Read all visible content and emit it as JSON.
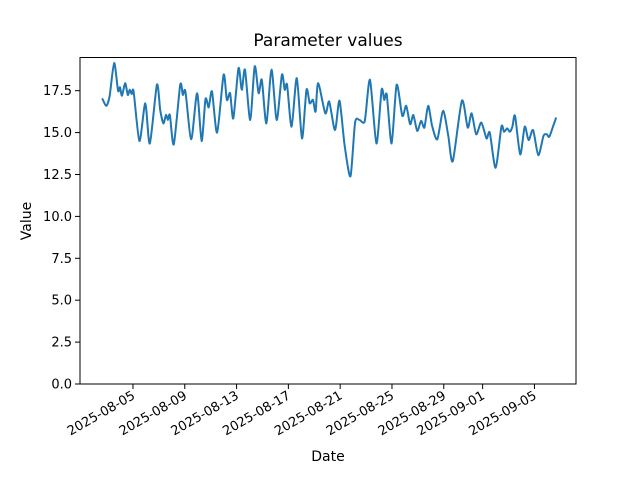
{
  "figure": {
    "title": "Parameter values",
    "xlabel": "Date",
    "ylabel": "Value"
  },
  "chart_data": {
    "type": "line",
    "title": "Parameter values",
    "xlabel": "Date",
    "ylabel": "Value",
    "grid": false,
    "legend": null,
    "background": "#ffffff",
    "line_color": "#1f77b4",
    "ylim": [
      0,
      19.48
    ],
    "y_tick_values": [
      0,
      2.5,
      5,
      7.5,
      10,
      12.5,
      15,
      17.5
    ],
    "y_tick_labels": [
      "0.0",
      "2.5",
      "5.0",
      "7.5",
      "10.0",
      "12.5",
      "15.0",
      "17.5"
    ],
    "x_epoch": "2025-08-05",
    "xlim_day_offsets": [
      -4.09,
      34.21
    ],
    "x_ticks": [
      {
        "label": "2025-08-05",
        "day_offset": 0
      },
      {
        "label": "2025-08-09",
        "day_offset": 4
      },
      {
        "label": "2025-08-13",
        "day_offset": 8
      },
      {
        "label": "2025-08-17",
        "day_offset": 12
      },
      {
        "label": "2025-08-21",
        "day_offset": 16
      },
      {
        "label": "2025-08-25",
        "day_offset": 20
      },
      {
        "label": "2025-08-29",
        "day_offset": 24
      },
      {
        "label": "2025-09-01",
        "day_offset": 27
      },
      {
        "label": "2025-09-05",
        "day_offset": 31
      }
    ],
    "series": [
      {
        "name": "parameter-values",
        "color": "#1f77b4",
        "points_day_offset_value": [
          [
            -2.35,
            17.0
          ],
          [
            -2.05,
            16.6
          ],
          [
            -1.8,
            17.2
          ],
          [
            -1.45,
            19.15
          ],
          [
            -1.15,
            17.5
          ],
          [
            -1.0,
            17.7
          ],
          [
            -0.85,
            17.2
          ],
          [
            -0.6,
            17.95
          ],
          [
            -0.4,
            17.25
          ],
          [
            -0.25,
            17.55
          ],
          [
            -0.1,
            17.3
          ],
          [
            0.05,
            17.45
          ],
          [
            0.5,
            14.5
          ],
          [
            0.95,
            16.75
          ],
          [
            1.3,
            14.35
          ],
          [
            1.85,
            17.85
          ],
          [
            2.1,
            16.35
          ],
          [
            2.35,
            15.55
          ],
          [
            2.55,
            16.05
          ],
          [
            2.7,
            15.75
          ],
          [
            2.85,
            16.05
          ],
          [
            3.15,
            14.3
          ],
          [
            3.65,
            17.85
          ],
          [
            3.85,
            17.25
          ],
          [
            4.05,
            17.45
          ],
          [
            4.5,
            14.6
          ],
          [
            4.95,
            17.35
          ],
          [
            5.3,
            14.5
          ],
          [
            5.6,
            17.0
          ],
          [
            5.85,
            16.5
          ],
          [
            6.1,
            17.45
          ],
          [
            6.5,
            15.0
          ],
          [
            7.0,
            18.45
          ],
          [
            7.25,
            16.95
          ],
          [
            7.5,
            17.35
          ],
          [
            7.75,
            15.85
          ],
          [
            8.15,
            18.85
          ],
          [
            8.4,
            17.55
          ],
          [
            8.65,
            18.75
          ],
          [
            9.05,
            15.75
          ],
          [
            9.4,
            18.95
          ],
          [
            9.7,
            17.35
          ],
          [
            9.95,
            18.15
          ],
          [
            10.3,
            15.55
          ],
          [
            10.7,
            18.75
          ],
          [
            11.1,
            15.75
          ],
          [
            11.5,
            18.45
          ],
          [
            11.72,
            17.55
          ],
          [
            11.9,
            17.85
          ],
          [
            12.25,
            15.35
          ],
          [
            12.65,
            18.25
          ],
          [
            13.05,
            14.65
          ],
          [
            13.4,
            17.55
          ],
          [
            13.65,
            16.75
          ],
          [
            13.9,
            16.95
          ],
          [
            14.1,
            16.25
          ],
          [
            14.3,
            17.95
          ],
          [
            14.85,
            16.15
          ],
          [
            15.15,
            16.85
          ],
          [
            15.6,
            15.15
          ],
          [
            15.95,
            16.9
          ],
          [
            16.35,
            14.2
          ],
          [
            16.8,
            12.4
          ],
          [
            17.15,
            15.6
          ],
          [
            17.5,
            15.75
          ],
          [
            17.9,
            15.7
          ],
          [
            18.3,
            18.15
          ],
          [
            18.8,
            14.35
          ],
          [
            19.2,
            17.55
          ],
          [
            19.4,
            16.95
          ],
          [
            19.6,
            17.25
          ],
          [
            19.97,
            14.35
          ],
          [
            20.36,
            17.85
          ],
          [
            20.8,
            16.0
          ],
          [
            21.1,
            16.6
          ],
          [
            21.4,
            15.5
          ],
          [
            21.65,
            16.05
          ],
          [
            21.95,
            15.1
          ],
          [
            22.25,
            15.7
          ],
          [
            22.5,
            15.3
          ],
          [
            22.8,
            16.6
          ],
          [
            23.1,
            15.4
          ],
          [
            23.5,
            14.6
          ],
          [
            23.95,
            16.3
          ],
          [
            24.35,
            14.8
          ],
          [
            24.7,
            13.3
          ],
          [
            25.4,
            16.9
          ],
          [
            25.85,
            15.3
          ],
          [
            26.15,
            16.15
          ],
          [
            26.5,
            14.9
          ],
          [
            26.9,
            15.6
          ],
          [
            27.3,
            14.65
          ],
          [
            27.55,
            15.0
          ],
          [
            28.0,
            12.9
          ],
          [
            28.45,
            15.35
          ],
          [
            28.65,
            15.05
          ],
          [
            28.9,
            15.25
          ],
          [
            29.1,
            15.05
          ],
          [
            29.3,
            15.35
          ],
          [
            29.5,
            16.0
          ],
          [
            29.9,
            13.7
          ],
          [
            30.25,
            15.35
          ],
          [
            30.55,
            14.55
          ],
          [
            30.9,
            15.15
          ],
          [
            31.3,
            13.65
          ],
          [
            31.7,
            14.8
          ],
          [
            31.95,
            14.9
          ],
          [
            32.15,
            14.75
          ],
          [
            32.45,
            15.4
          ],
          [
            32.66,
            15.85
          ]
        ]
      }
    ]
  }
}
